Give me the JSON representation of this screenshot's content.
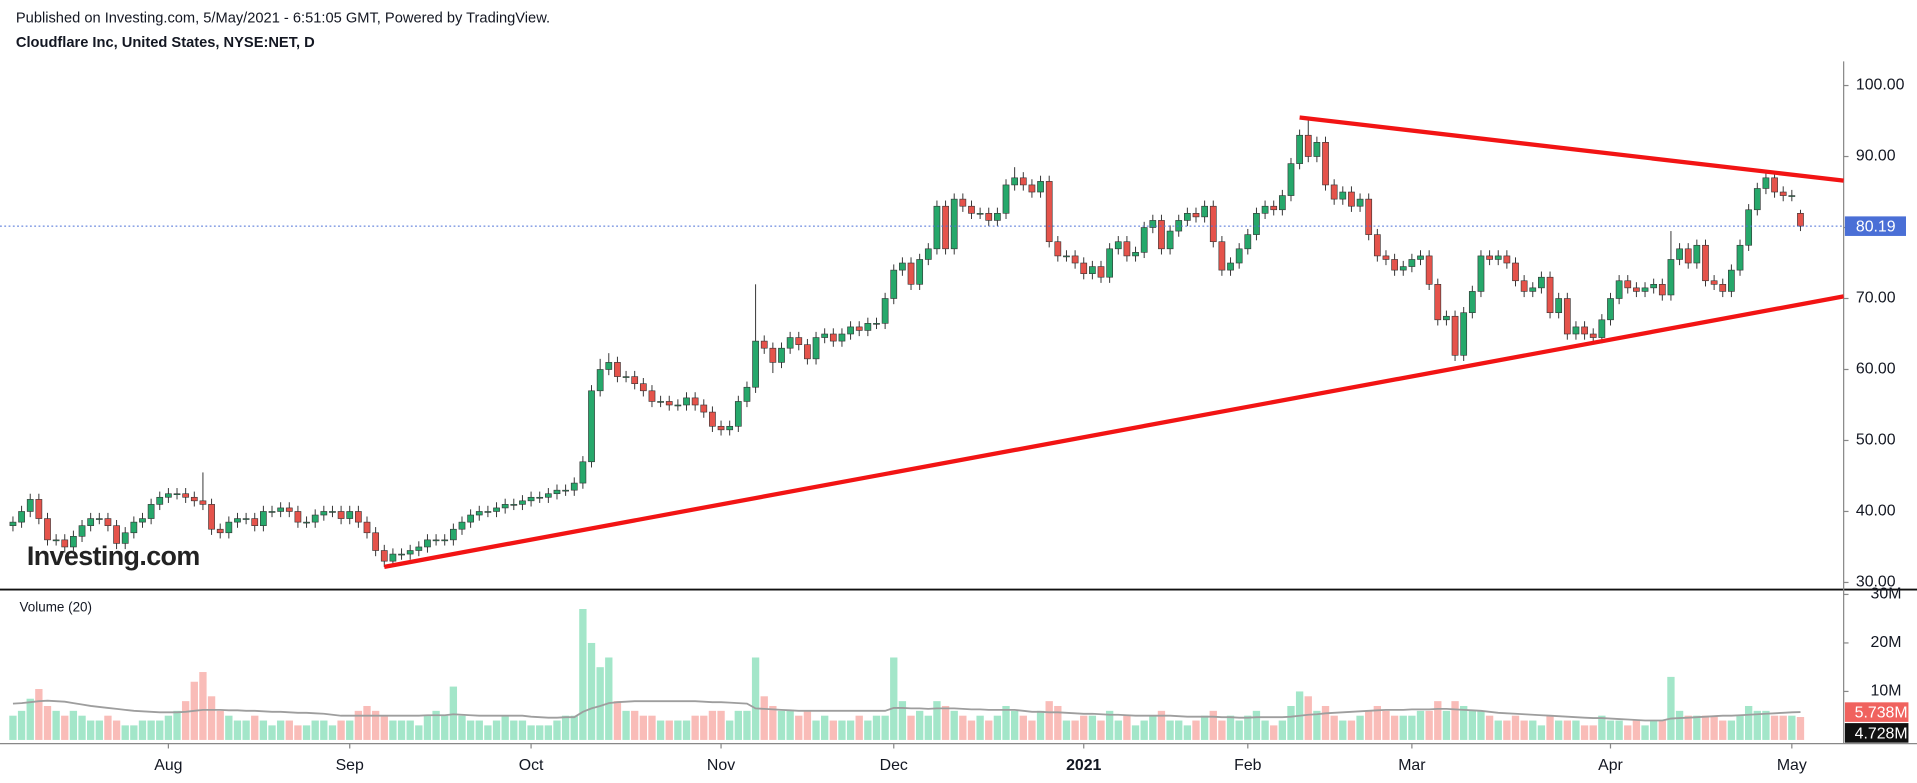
{
  "chart_data": {
    "type": "candlestick",
    "header": "Published on Investing.com, 5/May/2021 - 6:51:05 GMT, Powered by TradingView.",
    "title": "Cloudflare Inc, United States, NYSE:NET, D",
    "logo": "Investing.com",
    "volume_title": "Volume (20)",
    "up_color": "#26a86b",
    "down_color": "#e5534b",
    "volume_up_color": "#a3e6c9",
    "volume_down_color": "#f9bcb8",
    "ma_color": "#9e9e9e",
    "trendline_color": "#f21414",
    "last_price_color": "#4a6fd6",
    "ma_label_color": "#f0625e",
    "xlim": [
      -1.5,
      212
    ],
    "xticks": [
      {
        "value": 18,
        "label": "Aug"
      },
      {
        "value": 39,
        "label": "Sep"
      },
      {
        "value": 60,
        "label": "Oct"
      },
      {
        "value": 82,
        "label": "Nov"
      },
      {
        "value": 102,
        "label": "Dec"
      },
      {
        "value": 124,
        "label": "2021"
      },
      {
        "value": 143,
        "label": "Feb"
      },
      {
        "value": 162,
        "label": "Mar"
      },
      {
        "value": 185,
        "label": "Apr"
      },
      {
        "value": 206,
        "label": "May"
      }
    ],
    "ylim": [
      29,
      103.4
    ],
    "yticks": [
      {
        "value": 30,
        "label": "30.00"
      },
      {
        "value": 40,
        "label": "40.00"
      },
      {
        "value": 50,
        "label": "50.00"
      },
      {
        "value": 60,
        "label": "60.00"
      },
      {
        "value": 70,
        "label": "70.00"
      },
      {
        "value": 80,
        "label": "80.00"
      },
      {
        "value": 90,
        "label": "90.00"
      },
      {
        "value": 100,
        "label": "100.00"
      }
    ],
    "volume_ylim": [
      0,
      30
    ],
    "volume_ticks": [
      {
        "value": 10,
        "label": "10M"
      },
      {
        "value": 20,
        "label": "20M"
      },
      {
        "value": 30,
        "label": "30M"
      }
    ],
    "open": [
      38,
      38.5,
      40,
      41.7,
      39,
      36,
      36,
      35,
      36.5,
      38,
      39,
      39,
      38,
      35.5,
      37,
      38.5,
      39,
      41,
      42,
      42.5,
      42.5,
      42,
      41.5,
      41,
      37.5,
      37,
      38.5,
      39,
      39,
      38,
      40,
      40,
      40.5,
      40,
      38.5,
      38.5,
      39.5,
      40,
      40,
      39,
      40,
      38.5,
      37,
      34.5,
      33,
      34,
      34,
      34.5,
      35,
      36,
      36,
      36,
      37.5,
      38.5,
      39.5,
      40,
      40,
      40.5,
      41,
      41,
      41.5,
      42,
      42,
      42.5,
      43,
      43,
      44,
      47,
      57,
      60,
      61,
      59,
      59,
      58,
      57,
      55.5,
      55.5,
      55,
      55,
      56,
      55,
      54,
      52,
      51.5,
      52,
      55.5,
      57.5,
      64,
      63,
      61,
      63,
      64.5,
      63.5,
      61.5,
      64.5,
      65,
      64,
      65,
      66,
      65.5,
      66.5,
      66.5,
      70,
      74,
      75,
      72,
      75.5,
      77,
      83,
      77,
      84,
      83,
      82,
      82,
      81,
      82,
      86,
      87,
      86,
      85,
      86.5,
      78,
      76,
      76,
      75,
      73.5,
      74.5,
      73,
      77,
      78,
      76,
      76.5,
      80,
      81,
      77,
      79.5,
      81,
      82,
      81.5,
      83,
      78,
      74,
      75,
      77,
      79,
      82,
      83,
      82.5,
      84.5,
      89,
      93,
      90,
      92,
      86,
      84,
      85,
      83,
      84,
      79,
      76,
      75.5,
      74,
      74.5,
      75.5,
      76,
      72,
      67,
      67.5,
      62,
      68,
      71,
      76,
      75.5,
      76,
      75,
      72.5,
      71,
      71.5,
      73,
      68,
      70,
      65,
      66,
      65,
      64.5,
      67,
      70,
      72.5,
      71.5,
      71,
      71.5,
      72,
      70.5,
      75.5,
      77,
      75,
      77.5,
      72.5,
      72,
      71,
      74,
      77.5,
      82.5,
      85.5,
      87,
      85,
      84.5,
      82
    ],
    "high": [
      39.3,
      40.8,
      42.5,
      42.5,
      39.8,
      36.8,
      36.8,
      37.3,
      38.8,
      39.8,
      39.8,
      39.8,
      38.8,
      37.8,
      39.3,
      39.8,
      41.8,
      42.8,
      43.3,
      43.3,
      43.3,
      42.8,
      45.5,
      41.8,
      38.3,
      39.3,
      39.8,
      39.8,
      39.8,
      40.8,
      40.8,
      41.3,
      41.3,
      40.8,
      39.3,
      40.3,
      40.8,
      40.8,
      40.8,
      40.8,
      40.8,
      39.3,
      37.8,
      35.3,
      34.8,
      34.8,
      35.3,
      35.8,
      36.8,
      36.8,
      36.8,
      38.3,
      39.3,
      40.3,
      40.8,
      40.8,
      41.3,
      41.8,
      41.8,
      42.3,
      42.8,
      42.8,
      43.3,
      43.8,
      43.8,
      44.8,
      47.8,
      57.8,
      61.5,
      62.3,
      61.8,
      59.8,
      59.8,
      58.8,
      57.8,
      56.3,
      56.3,
      55.8,
      56.8,
      56.8,
      55.8,
      54.8,
      52.8,
      52.8,
      56.3,
      58.3,
      72,
      64.8,
      63.8,
      63.8,
      65.3,
      65.3,
      64.3,
      65.3,
      65.8,
      65.8,
      65.8,
      66.8,
      66.8,
      67.3,
      67.3,
      70.8,
      74.8,
      75.8,
      75.8,
      76.3,
      77.8,
      83.8,
      83.8,
      84.8,
      84.8,
      83.8,
      82.8,
      82.8,
      82.8,
      86.8,
      88.5,
      87.8,
      86.8,
      87.3,
      87.3,
      78.8,
      76.8,
      76.8,
      75.8,
      75.3,
      75.3,
      77.8,
      78.8,
      78.8,
      77.3,
      80.8,
      81.8,
      81.8,
      80.3,
      81.8,
      82.8,
      82.8,
      83.8,
      83.8,
      78.8,
      75.8,
      77.8,
      79.8,
      82.8,
      83.8,
      83.8,
      85.3,
      89.8,
      93.8,
      95.5,
      92.8,
      92.8,
      86.8,
      85.8,
      85.8,
      84.8,
      84.8,
      79.8,
      76.8,
      76.3,
      75.3,
      76.3,
      76.8,
      76.8,
      72.8,
      68.3,
      68.3,
      68.8,
      71.8,
      76.8,
      76.8,
      76.8,
      76.8,
      75.8,
      73.3,
      72.3,
      73.8,
      73.8,
      70.8,
      70.8,
      66.8,
      66.8,
      65.8,
      67.8,
      70.8,
      73.3,
      73.3,
      72.3,
      72.3,
      72.8,
      72.8,
      79.5,
      77.8,
      77.8,
      78.3,
      78.3,
      73.3,
      72.8,
      74.8,
      78.3,
      83.3,
      86.3,
      87.8,
      87.8,
      85.8,
      85.3,
      82.5
    ],
    "low": [
      37.2,
      37.7,
      39.2,
      38.2,
      35.2,
      35.2,
      34.2,
      34.2,
      35.7,
      37.2,
      38.2,
      37.2,
      34.7,
      34.7,
      36.2,
      37.7,
      38.2,
      40.2,
      41.2,
      41.7,
      41.2,
      40.7,
      40.2,
      36.7,
      36.2,
      36.2,
      37.7,
      38.2,
      37.2,
      37.2,
      39.2,
      39.2,
      39.2,
      37.7,
      37.7,
      37.7,
      38.7,
      39.2,
      38.2,
      38.2,
      37.7,
      36.2,
      33.7,
      32.2,
      32.2,
      33.2,
      33.2,
      33.7,
      34.2,
      35.2,
      35.2,
      35.2,
      36.7,
      37.7,
      38.7,
      39.2,
      39.2,
      39.7,
      40.2,
      40.2,
      40.7,
      41.2,
      41.2,
      41.7,
      42.2,
      42.2,
      43.2,
      46.2,
      56.2,
      59.2,
      58.2,
      58.2,
      57.2,
      56.2,
      54.7,
      54.7,
      54.2,
      54.2,
      54.2,
      54.2,
      53.2,
      51.2,
      50.7,
      50.7,
      51.2,
      54.7,
      56.7,
      62.2,
      59.5,
      60.2,
      62.2,
      62.7,
      60.7,
      60.7,
      63.7,
      63.2,
      63.2,
      64.2,
      64.7,
      64.7,
      65.7,
      65.7,
      69.2,
      73.2,
      71.2,
      71.2,
      74.7,
      76.2,
      76.2,
      76.2,
      82.2,
      81.2,
      81.2,
      80.2,
      80.2,
      81.2,
      85.2,
      85.2,
      84.2,
      84.2,
      77.2,
      75.2,
      75.2,
      74.2,
      72.7,
      72.7,
      72.2,
      72.2,
      76.2,
      75.2,
      75.2,
      75.7,
      79.2,
      76.2,
      76.2,
      78.7,
      80.2,
      80.7,
      80.7,
      77.2,
      73.2,
      73.2,
      74.2,
      76.2,
      78.2,
      81.2,
      81.7,
      81.7,
      83.7,
      88.2,
      89.2,
      89.2,
      85.2,
      83.2,
      83.2,
      82.2,
      82.2,
      78.2,
      75.2,
      74.7,
      73.2,
      73.2,
      73.7,
      74.7,
      71.2,
      66.2,
      66.2,
      61.2,
      61.2,
      67.2,
      70.2,
      74.7,
      74.7,
      74.2,
      71.7,
      70.2,
      70.2,
      70.7,
      67.2,
      67.2,
      64.2,
      64.2,
      64.2,
      63.7,
      63.7,
      66.2,
      69.2,
      70.7,
      70.2,
      70.2,
      70.7,
      69.7,
      69.7,
      74.7,
      74.2,
      74.2,
      71.7,
      71.2,
      70.2,
      70.2,
      73.2,
      76.7,
      81.7,
      84.7,
      84.2,
      83.7,
      83.7,
      79.5
    ],
    "close": [
      38.5,
      40,
      41.7,
      39,
      36,
      36,
      35,
      36.5,
      38,
      39,
      39,
      38,
      35.5,
      37,
      38.5,
      39,
      41,
      42,
      42.5,
      42.5,
      42,
      41.5,
      41,
      37.5,
      37,
      38.5,
      39,
      39,
      38,
      40,
      40,
      40.5,
      40,
      38.5,
      38.5,
      39.5,
      40,
      40,
      39,
      40,
      38.5,
      37,
      34.5,
      33,
      34,
      34,
      34.5,
      35,
      36,
      36,
      36,
      37.5,
      38.5,
      39.5,
      40,
      40,
      40.5,
      41,
      41,
      41.5,
      42,
      42,
      42.5,
      43,
      43,
      44,
      47,
      57,
      60,
      61,
      59,
      59,
      58,
      57,
      55.5,
      55.5,
      55,
      55,
      56,
      55,
      54,
      52,
      51.5,
      52,
      55.5,
      57.5,
      64,
      63,
      61,
      63,
      64.5,
      63.5,
      61.5,
      64.5,
      65,
      64,
      65,
      66,
      65.5,
      66.5,
      66.5,
      70,
      74,
      75,
      72,
      75.5,
      77,
      83,
      77,
      84,
      83,
      82,
      82,
      81,
      82,
      86,
      87,
      86,
      85,
      86.5,
      78,
      76,
      76,
      75,
      73.5,
      74.5,
      73,
      77,
      78,
      76,
      76.5,
      80,
      81,
      77,
      79.5,
      81,
      82,
      81.5,
      83,
      78,
      74,
      75,
      77,
      79,
      82,
      83,
      82.5,
      84.5,
      89,
      93,
      90,
      92,
      86,
      84,
      85,
      83,
      84,
      79,
      76,
      75.5,
      74,
      74.5,
      75.5,
      76,
      72,
      67,
      67.5,
      62,
      68,
      71,
      76,
      75.5,
      76,
      75,
      72.5,
      71,
      71.5,
      73,
      68,
      70,
      65,
      66,
      65,
      64.5,
      67,
      70,
      72.5,
      71.5,
      71,
      71.5,
      72,
      70.5,
      75.5,
      77,
      75,
      77.5,
      72.5,
      72,
      71,
      74,
      77.5,
      82.5,
      85.5,
      87,
      85,
      84.5,
      84.5,
      80.19
    ],
    "volume": [
      5,
      6,
      8.5,
      10.5,
      7,
      6,
      5,
      6,
      5,
      4,
      4,
      5,
      4,
      3,
      3,
      4,
      4,
      4,
      5,
      6,
      8,
      12,
      14,
      9,
      6,
      5,
      4,
      4,
      5,
      4,
      3,
      4,
      4,
      3,
      3,
      4,
      4,
      3,
      4,
      4,
      6,
      7,
      6,
      5,
      4,
      4,
      4,
      3,
      5,
      6,
      5,
      11,
      5,
      4,
      4,
      3,
      4,
      5,
      4,
      4,
      3,
      3,
      3,
      4,
      5,
      5,
      27,
      20,
      15,
      17,
      8,
      6,
      6,
      5,
      5,
      4,
      4,
      4,
      4,
      5,
      5,
      6,
      6,
      4,
      6,
      6,
      17,
      9,
      7,
      6,
      6,
      5,
      6,
      4,
      5,
      4,
      4,
      4,
      5,
      4,
      5,
      5,
      17,
      8,
      5,
      6,
      5,
      8,
      7,
      6,
      5,
      4,
      5,
      4,
      5,
      7,
      6,
      5,
      4,
      6,
      8,
      7,
      4,
      4,
      5,
      5,
      4,
      6,
      4,
      5,
      3,
      4,
      5,
      6,
      4,
      4,
      3,
      4,
      5,
      6,
      4,
      5,
      4,
      5,
      6,
      4,
      3,
      4,
      7,
      10,
      9,
      6,
      7,
      5,
      4,
      4,
      5,
      6,
      7,
      6,
      5,
      5,
      5,
      6,
      6,
      8,
      6,
      8,
      7,
      6,
      6,
      5,
      4,
      4,
      5,
      4,
      4,
      3,
      5,
      4,
      4,
      4,
      3,
      3,
      5,
      4,
      4,
      3,
      4,
      3,
      4,
      4,
      13,
      6,
      5,
      5,
      5,
      5,
      4,
      4,
      5,
      7,
      6,
      6,
      5,
      5,
      5,
      4.728
    ],
    "volume_value_labels_last": "4.728M",
    "volume_ma": [
      7.5,
      7.6,
      7.8,
      8,
      8.1,
      8,
      7.9,
      7.6,
      7.3,
      7,
      6.8,
      6.6,
      6.4,
      6.2,
      6,
      5.9,
      5.8,
      5.7,
      5.7,
      5.7,
      5.8,
      6,
      6.2,
      6.2,
      6.2,
      6.1,
      6.1,
      6,
      6,
      5.9,
      5.8,
      5.8,
      5.7,
      5.6,
      5.6,
      5.5,
      5.4,
      5.2,
      5,
      5,
      5,
      5,
      5,
      5,
      5,
      5,
      5,
      5,
      5.1,
      5.1,
      5.1,
      5.3,
      5.2,
      5.1,
      5,
      5,
      5,
      5,
      5,
      5,
      4.8,
      4.7,
      4.6,
      4.6,
      4.7,
      4.7,
      5.8,
      6.5,
      7,
      7.6,
      7.8,
      7.9,
      8,
      8,
      8,
      8,
      8,
      8,
      8,
      8,
      7.9,
      7.8,
      7.8,
      7.7,
      7.6,
      7.5,
      6.5,
      6.4,
      6.3,
      6.2,
      6.1,
      6,
      6,
      6,
      6,
      6,
      6,
      6,
      6,
      6,
      6,
      6,
      6.6,
      6.6,
      6.5,
      6.5,
      6.4,
      6.5,
      6.5,
      6.5,
      6.4,
      6.3,
      6.3,
      6.2,
      6.2,
      6.2,
      6.2,
      6,
      5.8,
      5.8,
      5.7,
      5.7,
      5.6,
      5.5,
      5.4,
      5.4,
      5.3,
      5.2,
      5.2,
      5.1,
      5,
      5,
      5,
      5,
      5,
      4.9,
      4.8,
      4.8,
      4.8,
      4.8,
      4.7,
      4.7,
      4.6,
      4.6,
      4.7,
      4.7,
      4.7,
      4.7,
      4.8,
      5,
      5.2,
      5.3,
      5.5,
      5.6,
      5.7,
      5.8,
      5.9,
      6,
      6.1,
      6.2,
      6.2,
      6.2,
      6.3,
      6.3,
      6.3,
      6.4,
      6.4,
      6.3,
      6.2,
      6.1,
      6,
      5.8,
      5.6,
      5.5,
      5.4,
      5.3,
      5.2,
      5.1,
      5,
      4.9,
      4.8,
      4.7,
      4.6,
      4.5,
      4.5,
      4.4,
      4.3,
      4.2,
      4.1,
      4,
      4,
      4,
      4.4,
      4.5,
      4.6,
      4.7,
      4.8,
      4.9,
      5,
      5,
      5.1,
      5.2,
      5.3,
      5.4,
      5.5,
      5.6,
      5.7,
      5.738
    ],
    "volume_ma_label_last": "5.738M",
    "trendlines": [
      {
        "x": [
          149,
          212
        ],
        "y": [
          95.5,
          86.6
        ]
      },
      {
        "x": [
          43,
          212
        ],
        "y": [
          32.2,
          70.3
        ]
      }
    ]
  }
}
